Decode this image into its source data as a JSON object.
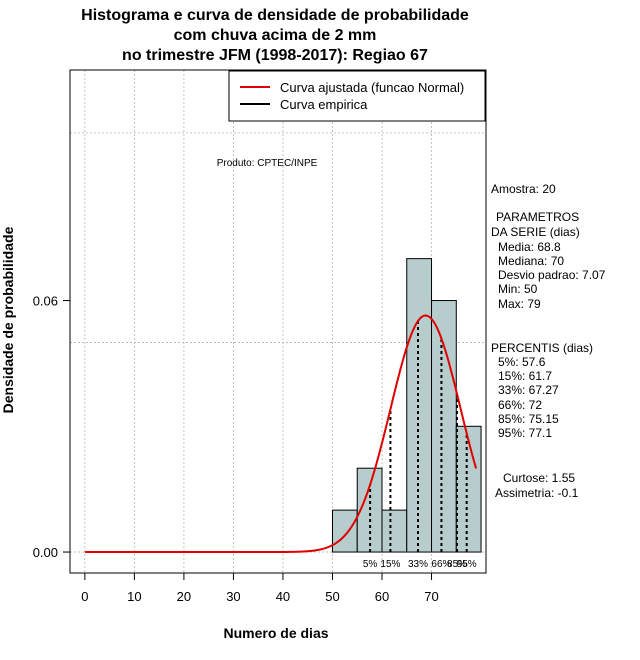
{
  "chart_data": {
    "type": "histogram",
    "title_lines": [
      "Histograma e curva de densidade de probabilidade",
      "com chuva acima de 2 mm",
      "no trimestre JFM (1998-2017): Regiao 67"
    ],
    "xlabel": "Numero de dias",
    "ylabel": "Densidade de probabilidade",
    "xlim": [
      -3,
      81
    ],
    "ylim": [
      -0.005,
      0.115
    ],
    "x_ticks": [
      0,
      10,
      20,
      30,
      40,
      50,
      60,
      70
    ],
    "y_ticks": [
      0.0,
      0.06
    ],
    "y_tick_labels": [
      "0.00",
      "0.06"
    ],
    "x_grid": [
      0,
      10,
      20,
      30,
      40,
      50,
      60,
      70
    ],
    "y_grid": [
      0.0,
      0.05,
      0.1
    ],
    "bins": [
      {
        "start": 50,
        "end": 55,
        "density": 0.01
      },
      {
        "start": 55,
        "end": 60,
        "density": 0.02
      },
      {
        "start": 60,
        "end": 65,
        "density": 0.01
      },
      {
        "start": 65,
        "end": 70,
        "density": 0.07
      },
      {
        "start": 70,
        "end": 75,
        "density": 0.06
      },
      {
        "start": 75,
        "end": 80,
        "density": 0.03
      }
    ],
    "bar_color": "#b7cccc",
    "normal_curve": {
      "name": "Curva ajustada (funcao Normal)",
      "mean": 68.8,
      "sd": 7.07,
      "x_from": 0,
      "x_to": 79,
      "color": "#e00000"
    },
    "empirical_curve": {
      "name": "Curva empirica",
      "color": "#000000"
    },
    "percentile_lines": [
      57.6,
      61.7,
      67.27,
      72,
      75.15,
      77.1
    ],
    "percentile_labels": [
      "5%",
      "15%",
      "33%",
      "66%",
      "85%",
      "95%"
    ],
    "legend_position": "top-right",
    "source": "Produto: CPTEC/INPE",
    "stats": {
      "amostra": "Amostra: 20",
      "param_title_1": "PARAMETROS",
      "param_title_2": "DA SERIE (dias)",
      "media": "Media: 68.8",
      "mediana": "Mediana: 70",
      "desvio": "Desvio padrao: 7.07",
      "min": "Min: 50",
      "max": "Max: 79",
      "percentis_title": "PERCENTIS (dias)",
      "p5": "5%: 57.6",
      "p15": "15%: 61.7",
      "p33": "33%: 67.27",
      "p66": "66%: 72",
      "p85": "85%: 75.15",
      "p95": "95%: 77.1",
      "curtose": "Curtose: 1.55",
      "assimetria": "Assimetria: -0.1"
    }
  }
}
